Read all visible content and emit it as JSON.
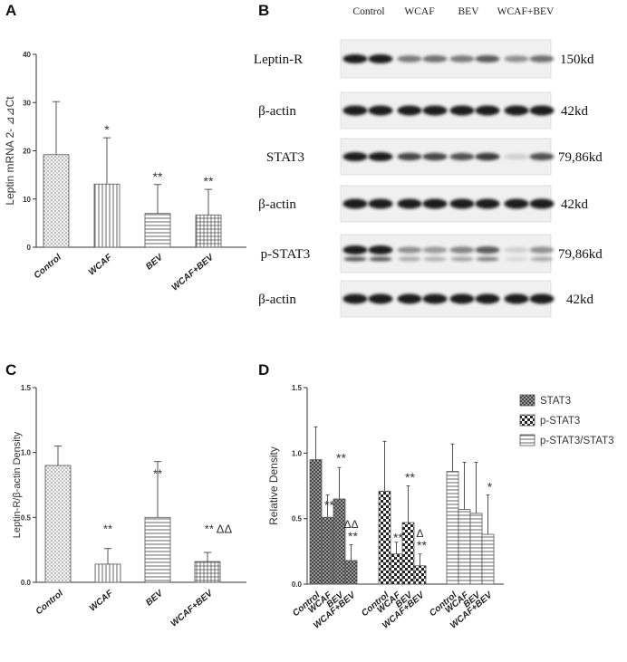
{
  "panels": {
    "a": "A",
    "b": "B",
    "c": "C",
    "d": "D"
  },
  "colors": {
    "bar_edge": "#555555",
    "band": "#1b1b1b",
    "blot_bg": "#f0f0f0"
  },
  "chart_data": [
    {
      "panel": "A",
      "type": "bar",
      "ylabel": "Leptin mRNA 2- ⊿⊿Ct",
      "ylim": [
        0,
        40
      ],
      "yticks": [
        "0",
        "10",
        "20",
        "30",
        "40"
      ],
      "categories": [
        "Control",
        "WCAF",
        "BEV",
        "WCAF+BEV"
      ],
      "values": [
        19.2,
        13.1,
        7.0,
        6.7
      ],
      "errors": [
        11.0,
        9.6,
        6.0,
        5.3
      ],
      "patterns": [
        "dots",
        "vlines",
        "hlines",
        "grid"
      ],
      "annotations": [
        "",
        "*",
        "**",
        "**"
      ]
    },
    {
      "panel": "C",
      "type": "bar",
      "ylabel": "Leptin-R/β-actin Density",
      "ylim": [
        0,
        1.5
      ],
      "yticks": [
        "0.0",
        "0.5",
        "1.0",
        "1.5"
      ],
      "categories": [
        "Control",
        "WCAF",
        "BEV",
        "WCAF+BEV"
      ],
      "values": [
        0.9,
        0.14,
        0.5,
        0.16
      ],
      "errors": [
        0.15,
        0.12,
        0.43,
        0.07
      ],
      "patterns": [
        "dots",
        "vlines",
        "hlines",
        "grid"
      ],
      "annotations": [
        "",
        "**",
        "**",
        "** ΔΔ"
      ]
    },
    {
      "panel": "D",
      "type": "bar",
      "ylabel": "Relative Density",
      "ylim": [
        0,
        1.5
      ],
      "yticks": [
        "0.0",
        "0.5",
        "1.0",
        "1.5"
      ],
      "categories": [
        "Control",
        "WCAF",
        "BEV",
        "WCAF+BEV"
      ],
      "legend_position": "top-right",
      "series": [
        {
          "name": "STAT3",
          "pattern": "darkcheck",
          "values": [
            0.95,
            0.51,
            0.65,
            0.18
          ],
          "errors": [
            0.25,
            0.17,
            0.24,
            0.12
          ],
          "annotations": [
            "",
            "**",
            "**",
            "ΔΔ\n**"
          ]
        },
        {
          "name": "p-STAT3",
          "pattern": "check",
          "values": [
            0.71,
            0.23,
            0.47,
            0.14
          ],
          "errors": [
            0.38,
            0.09,
            0.28,
            0.09
          ],
          "annotations": [
            "",
            "**",
            "**",
            "Δ\n**"
          ]
        },
        {
          "name": "p-STAT3/STAT3",
          "pattern": "hlines",
          "values": [
            0.86,
            0.57,
            0.54,
            0.38
          ],
          "errors": [
            0.21,
            0.36,
            0.39,
            0.3
          ],
          "annotations": [
            "",
            "",
            "",
            "*"
          ]
        }
      ]
    }
  ],
  "blot": {
    "lanes": [
      "Control",
      "WCAF",
      "BEV",
      "WCAF+BEV"
    ],
    "rows": [
      {
        "label": "Leptin-R",
        "size": "150kd",
        "intensity": [
          1,
          1,
          0.55,
          0.6,
          0.55,
          0.7,
          0.45,
          0.6
        ]
      },
      {
        "label": "β-actin",
        "size": "42kd",
        "intensity": [
          1,
          1,
          1,
          1,
          1,
          1,
          1,
          1
        ]
      },
      {
        "label": "STAT3",
        "size": "79,86kd",
        "intensity": [
          1,
          1,
          0.8,
          0.8,
          0.75,
          0.85,
          0.15,
          0.75
        ]
      },
      {
        "label": "β-actin",
        "size": "42kd",
        "intensity": [
          1,
          1,
          1,
          1,
          1,
          1,
          1,
          1
        ]
      },
      {
        "label": "p-STAT3",
        "size": "79,86kd",
        "intensity": [
          1,
          1,
          0.45,
          0.4,
          0.5,
          0.7,
          0.15,
          0.45
        ]
      },
      {
        "label": "β-actin",
        "size": "42kd",
        "intensity": [
          1,
          1,
          1,
          1,
          1,
          1,
          1,
          1
        ]
      }
    ]
  }
}
